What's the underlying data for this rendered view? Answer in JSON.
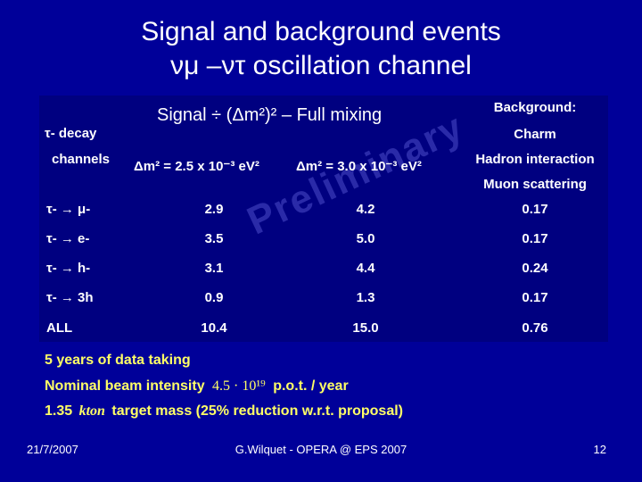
{
  "title": {
    "line1": "Signal and background events",
    "line2": "νμ –ντ oscillation channel"
  },
  "table": {
    "signal_header": "Signal ÷ (Δm²)² – Full mixing",
    "row_label_header1": "τ- decay",
    "row_label_header2": "channels",
    "col1_header": "Δm² = 2.5 x 10⁻³ eV²",
    "col2_header": "Δm² = 3.0 x 10⁻³ eV²",
    "background_header": "Background:",
    "bg_lines": [
      "Charm",
      "Hadron interaction",
      "Muon scattering"
    ],
    "rows": [
      {
        "label": "τ- → μ-",
        "col1": "2.9",
        "col2": "4.2",
        "bg": "0.17"
      },
      {
        "label": "τ- → e-",
        "col1": "3.5",
        "col2": "5.0",
        "bg": "0.17"
      },
      {
        "label": "τ- → h-",
        "col1": "3.1",
        "col2": "4.4",
        "bg": "0.24"
      },
      {
        "label": "τ- → 3h",
        "col1": "0.9",
        "col2": "1.3",
        "bg": "0.17"
      },
      {
        "label": "ALL",
        "col1": "10.4",
        "col2": "15.0",
        "bg": "0.76"
      }
    ],
    "watermark": "Preliminary"
  },
  "notes": {
    "line1": "5 years of data taking",
    "line2_a": "Nominal beam intensity",
    "line2_b": "4.5 · 10¹⁹",
    "line2_c": "p.o.t.  / year",
    "line3_a": "1.35",
    "line3_b": "kton",
    "line3_c": "target mass (25% reduction w.r.t. proposal)"
  },
  "footer": {
    "date": "21/7/2007",
    "center": "G.Wilquet - OPERA @ EPS 2007",
    "page": "12"
  },
  "colors": {
    "background": "#000099",
    "table": "#000080",
    "notes": "#ffff66"
  }
}
